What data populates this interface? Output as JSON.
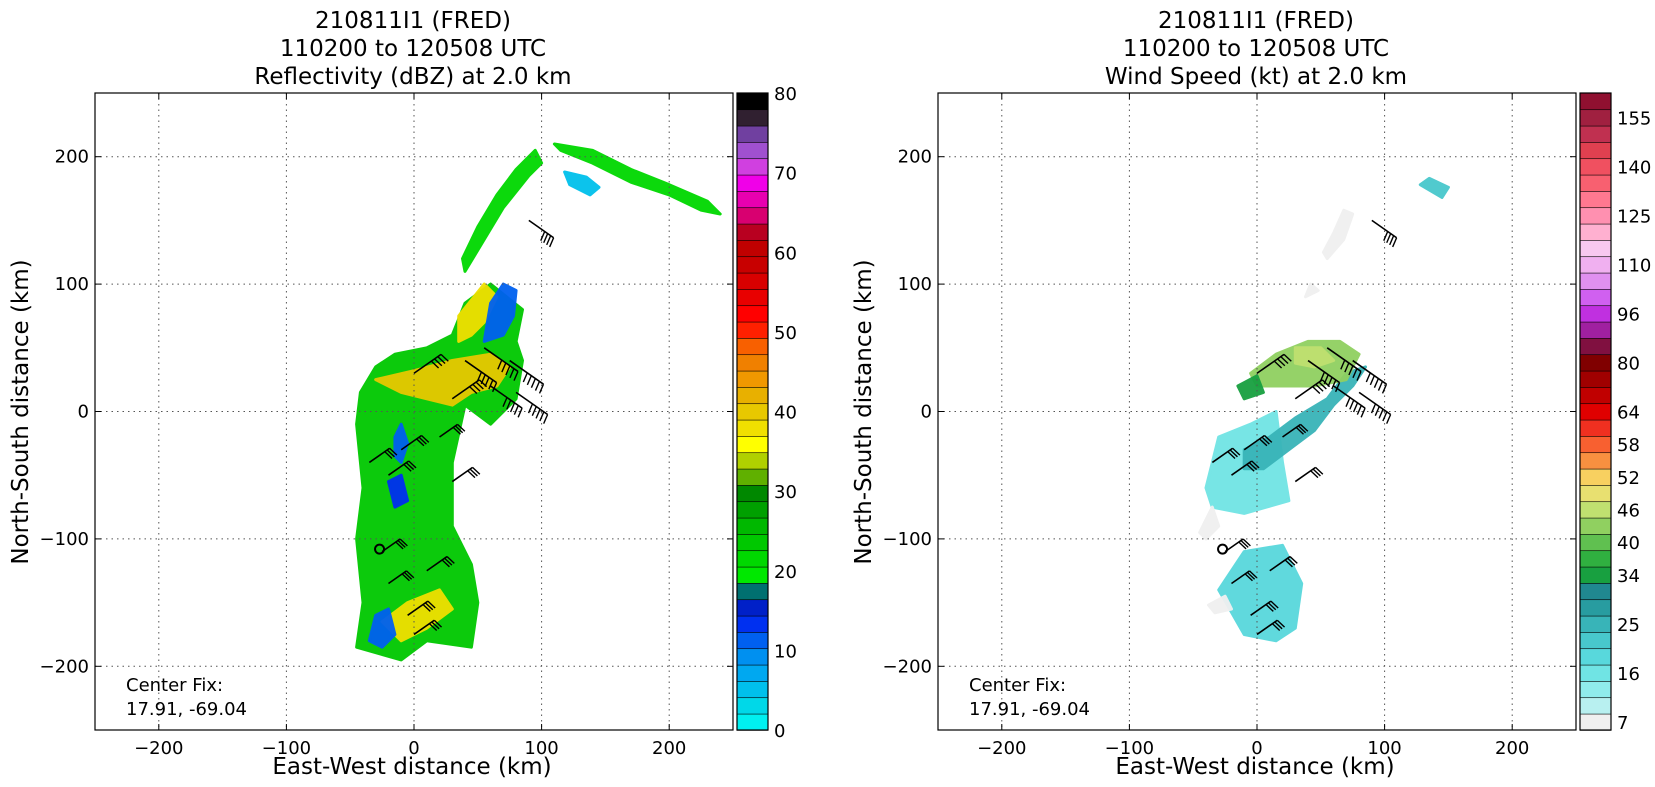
{
  "chart_data": [
    {
      "type": "heatmap",
      "title": [
        "210811I1 (FRED)",
        "110200 to 120508 UTC",
        "Reflectivity (dBZ) at 2.0 km"
      ],
      "xlabel": "East-West distance (km)",
      "ylabel": "North-South distance (km)",
      "xlim": [
        -250,
        250
      ],
      "ylim": [
        -250,
        250
      ],
      "xticks": [
        -200,
        -100,
        0,
        100,
        200
      ],
      "yticks": [
        -200,
        -100,
        0,
        100,
        200
      ],
      "grid": true,
      "annotation": [
        "Center Fix:",
        "17.91, -69.04"
      ],
      "center_fix_marker": [
        -27,
        -108
      ],
      "colorbar": {
        "ticks": [
          0,
          10,
          20,
          30,
          40,
          50,
          60,
          70,
          80
        ],
        "colors": [
          "#00f0f0",
          "#00d8e8",
          "#00c0ec",
          "#00a8f0",
          "#0090f0",
          "#0060f0",
          "#0030f0",
          "#0020c8",
          "#007070",
          "#00e800",
          "#00d800",
          "#00c800",
          "#00b800",
          "#00a000",
          "#008800",
          "#60b000",
          "#b0d000",
          "#ffff00",
          "#f0e000",
          "#e8c800",
          "#e8b000",
          "#f09800",
          "#f08000",
          "#f86000",
          "#ff2000",
          "#ff0000",
          "#e80000",
          "#d80000",
          "#c80000",
          "#c00000",
          "#b80020",
          "#d80070",
          "#e800b0",
          "#f000e8",
          "#d040e0",
          "#a050d0",
          "#7040a0",
          "#302030",
          "#000000"
        ]
      },
      "echo_regions": [
        {
          "pts": [
            [
              -45,
              -185
            ],
            [
              -40,
              -150
            ],
            [
              -45,
              -100
            ],
            [
              -40,
              -60
            ],
            [
              -45,
              -10
            ],
            [
              -42,
              15
            ],
            [
              -30,
              35
            ],
            [
              -15,
              45
            ],
            [
              10,
              50
            ],
            [
              30,
              60
            ],
            [
              40,
              85
            ],
            [
              60,
              100
            ],
            [
              85,
              80
            ],
            [
              80,
              55
            ],
            [
              85,
              40
            ],
            [
              80,
              10
            ],
            [
              60,
              -10
            ],
            [
              40,
              5
            ],
            [
              30,
              -40
            ],
            [
              30,
              -90
            ],
            [
              45,
              -120
            ],
            [
              50,
              -150
            ],
            [
              45,
              -185
            ],
            [
              10,
              -180
            ],
            [
              -10,
              -195
            ]
          ],
          "color": "#00c800"
        },
        {
          "pts": [
            [
              -30,
              25
            ],
            [
              0,
              32
            ],
            [
              30,
              40
            ],
            [
              60,
              45
            ],
            [
              75,
              35
            ],
            [
              65,
              20
            ],
            [
              45,
              15
            ],
            [
              30,
              5
            ],
            [
              10,
              10
            ],
            [
              -10,
              15
            ]
          ],
          "color": "#e8c800"
        },
        {
          "pts": [
            [
              35,
              75
            ],
            [
              55,
              100
            ],
            [
              65,
              90
            ],
            [
              55,
              70
            ],
            [
              45,
              60
            ],
            [
              35,
              55
            ]
          ],
          "color": "#f0e000"
        },
        {
          "pts": [
            [
              -25,
              -165
            ],
            [
              -5,
              -150
            ],
            [
              20,
              -140
            ],
            [
              30,
              -155
            ],
            [
              10,
              -170
            ],
            [
              -10,
              -180
            ]
          ],
          "color": "#f0e000"
        },
        {
          "pts": [
            [
              55,
              55
            ],
            [
              60,
              85
            ],
            [
              70,
              100
            ],
            [
              80,
              95
            ],
            [
              78,
              75
            ],
            [
              70,
              60
            ]
          ],
          "color": "#0060f0"
        },
        {
          "pts": [
            [
              -35,
              -180
            ],
            [
              -30,
              -160
            ],
            [
              -20,
              -155
            ],
            [
              -15,
              -175
            ],
            [
              -25,
              -185
            ]
          ],
          "color": "#0060f0"
        },
        {
          "pts": [
            [
              -15,
              -20
            ],
            [
              -10,
              -10
            ],
            [
              -5,
              -25
            ],
            [
              -10,
              -40
            ],
            [
              -15,
              -35
            ]
          ],
          "color": "#0060f0"
        },
        {
          "pts": [
            [
              -20,
              -55
            ],
            [
              -10,
              -50
            ],
            [
              -5,
              -70
            ],
            [
              -15,
              -75
            ]
          ],
          "color": "#0030f0"
        },
        {
          "pts": [
            [
              40,
              110
            ],
            [
              55,
              135
            ],
            [
              70,
              160
            ],
            [
              90,
              185
            ],
            [
              100,
              195
            ],
            [
              95,
              205
            ],
            [
              80,
              190
            ],
            [
              65,
              170
            ],
            [
              50,
              145
            ],
            [
              38,
              120
            ]
          ],
          "color": "#00d800"
        },
        {
          "pts": [
            [
              110,
              210
            ],
            [
              140,
              205
            ],
            [
              170,
              190
            ],
            [
              200,
              178
            ],
            [
              230,
              165
            ],
            [
              240,
              155
            ],
            [
              225,
              158
            ],
            [
              200,
              170
            ],
            [
              170,
              180
            ],
            [
              140,
              195
            ],
            [
              115,
              205
            ]
          ],
          "color": "#00d800"
        },
        {
          "pts": [
            [
              118,
              188
            ],
            [
              135,
              184
            ],
            [
              145,
              176
            ],
            [
              138,
              170
            ],
            [
              122,
              178
            ]
          ],
          "color": "#00c0ec"
        }
      ],
      "wind_barbs": [
        [
          -20,
          -50,
          45,
          "ne"
        ],
        [
          -10,
          -30,
          45,
          "ne"
        ],
        [
          20,
          -20,
          40,
          "ne"
        ],
        [
          30,
          10,
          60,
          "ne"
        ],
        [
          0,
          30,
          60,
          "ne"
        ],
        [
          -35,
          -40,
          45,
          "ne"
        ],
        [
          -25,
          -110,
          40,
          "ne"
        ],
        [
          -20,
          -135,
          40,
          "ne"
        ],
        [
          -5,
          -160,
          45,
          "ne"
        ],
        [
          0,
          -175,
          45,
          "ne"
        ],
        [
          55,
          50,
          75,
          "se"
        ],
        [
          75,
          40,
          75,
          "se"
        ],
        [
          80,
          15,
          70,
          "se"
        ],
        [
          60,
          20,
          70,
          "se"
        ],
        [
          40,
          40,
          70,
          "se"
        ],
        [
          90,
          150,
          55,
          "se"
        ],
        [
          30,
          -55,
          45,
          "ne"
        ],
        [
          10,
          -125,
          45,
          "ne"
        ]
      ]
    },
    {
      "type": "heatmap",
      "title": [
        "210811I1 (FRED)",
        "110200 to 120508 UTC",
        "Wind Speed (kt) at 2.0 km"
      ],
      "xlabel": "East-West distance (km)",
      "ylabel": "North-South distance (km)",
      "xlim": [
        -250,
        250
      ],
      "ylim": [
        -250,
        250
      ],
      "xticks": [
        -200,
        -100,
        0,
        100,
        200
      ],
      "yticks": [
        -200,
        -100,
        0,
        100,
        200
      ],
      "grid": true,
      "annotation": [
        "Center Fix:",
        "17.91, -69.04"
      ],
      "center_fix_marker": [
        -27,
        -108
      ],
      "colorbar": {
        "ticks": [
          7,
          16,
          25,
          34,
          40,
          46,
          52,
          58,
          64,
          80,
          96,
          110,
          125,
          140,
          155
        ],
        "tick_indices": [
          0,
          3,
          6,
          9,
          11,
          13,
          15,
          17,
          19,
          22,
          25,
          28,
          31,
          34,
          37
        ],
        "colors": [
          "#f0f0f0",
          "#b8f0f0",
          "#90ecec",
          "#70e4e4",
          "#58d8dc",
          "#48c8cc",
          "#38b4b8",
          "#289ca0",
          "#208890",
          "#18a040",
          "#30b040",
          "#60c050",
          "#90d060",
          "#c0e070",
          "#e8e070",
          "#f8d060",
          "#f89040",
          "#f86030",
          "#f03020",
          "#e00000",
          "#c00000",
          "#a00000",
          "#800000",
          "#801040",
          "#a020a0",
          "#c030e0",
          "#d060f0",
          "#e090f0",
          "#f0b0f0",
          "#f8c8f0",
          "#ffb0d0",
          "#ff90b0",
          "#ff7890",
          "#f86070",
          "#f05060",
          "#e04050",
          "#c03050",
          "#a02040",
          "#901030"
        ]
      },
      "echo_regions": [
        {
          "pts": [
            [
              -40,
              -60
            ],
            [
              -30,
              -20
            ],
            [
              -5,
              -10
            ],
            [
              15,
              0
            ],
            [
              20,
              -40
            ],
            [
              25,
              -70
            ],
            [
              -10,
              -80
            ],
            [
              -35,
              -75
            ]
          ],
          "color": "#70e4e4"
        },
        {
          "pts": [
            [
              -30,
              -140
            ],
            [
              -10,
              -110
            ],
            [
              20,
              -105
            ],
            [
              35,
              -135
            ],
            [
              30,
              -170
            ],
            [
              15,
              -180
            ],
            [
              -10,
              -175
            ]
          ],
          "color": "#58d8dc"
        },
        {
          "pts": [
            [
              -10,
              -30
            ],
            [
              10,
              -20
            ],
            [
              30,
              -5
            ],
            [
              55,
              10
            ],
            [
              70,
              30
            ],
            [
              85,
              35
            ],
            [
              75,
              20
            ],
            [
              60,
              5
            ],
            [
              45,
              -15
            ],
            [
              25,
              -30
            ],
            [
              5,
              -45
            ],
            [
              -10,
              -45
            ]
          ],
          "color": "#38b4b8"
        },
        {
          "pts": [
            [
              -5,
              30
            ],
            [
              15,
              45
            ],
            [
              40,
              55
            ],
            [
              65,
              55
            ],
            [
              80,
              45
            ],
            [
              70,
              25
            ],
            [
              45,
              20
            ],
            [
              20,
              20
            ],
            [
              0,
              20
            ]
          ],
          "color": "#90d060"
        },
        {
          "pts": [
            [
              30,
              50
            ],
            [
              50,
              50
            ],
            [
              60,
              40
            ],
            [
              45,
              35
            ],
            [
              30,
              38
            ]
          ],
          "color": "#c0e070"
        },
        {
          "pts": [
            [
              -15,
              20
            ],
            [
              0,
              28
            ],
            [
              5,
              15
            ],
            [
              -10,
              10
            ]
          ],
          "color": "#18a040"
        },
        {
          "pts": [
            [
              -45,
              -95
            ],
            [
              -35,
              -75
            ],
            [
              -30,
              -90
            ],
            [
              -40,
              -100
            ]
          ],
          "color": "#f0f0f0"
        },
        {
          "pts": [
            [
              -38,
              -152
            ],
            [
              -25,
              -145
            ],
            [
              -20,
              -155
            ],
            [
              -33,
              -158
            ]
          ],
          "color": "#f0f0f0"
        },
        {
          "pts": [
            [
              55,
              120
            ],
            [
              68,
              135
            ],
            [
              75,
              155
            ],
            [
              68,
              158
            ],
            [
              60,
              140
            ],
            [
              52,
              125
            ]
          ],
          "color": "#f0f0f0"
        },
        {
          "pts": [
            [
              128,
              178
            ],
            [
              145,
              168
            ],
            [
              150,
              176
            ],
            [
              135,
              183
            ]
          ],
          "color": "#48c8cc"
        },
        {
          "pts": [
            [
              38,
              90
            ],
            [
              42,
              100
            ],
            [
              48,
              95
            ]
          ],
          "color": "#f0f0f0"
        }
      ],
      "wind_barbs": [
        [
          -20,
          -50,
          45,
          "ne"
        ],
        [
          -10,
          -30,
          45,
          "ne"
        ],
        [
          20,
          -20,
          40,
          "ne"
        ],
        [
          30,
          10,
          60,
          "ne"
        ],
        [
          0,
          30,
          60,
          "ne"
        ],
        [
          -35,
          -40,
          45,
          "ne"
        ],
        [
          -25,
          -110,
          40,
          "ne"
        ],
        [
          -20,
          -135,
          40,
          "ne"
        ],
        [
          -5,
          -160,
          45,
          "ne"
        ],
        [
          0,
          -175,
          45,
          "ne"
        ],
        [
          55,
          50,
          75,
          "se"
        ],
        [
          75,
          40,
          75,
          "se"
        ],
        [
          80,
          15,
          70,
          "se"
        ],
        [
          60,
          20,
          70,
          "se"
        ],
        [
          40,
          40,
          70,
          "se"
        ],
        [
          90,
          150,
          55,
          "se"
        ],
        [
          30,
          -55,
          45,
          "ne"
        ],
        [
          10,
          -125,
          45,
          "ne"
        ]
      ]
    }
  ]
}
